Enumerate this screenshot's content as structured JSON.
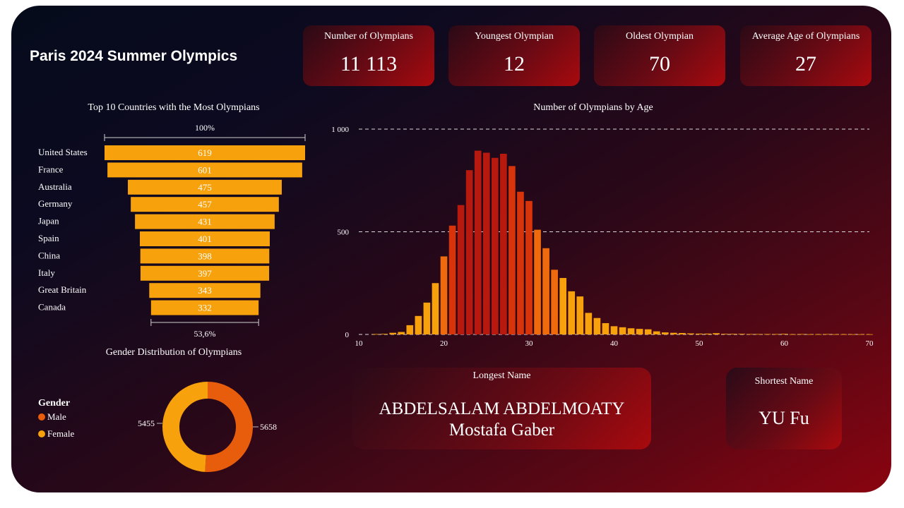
{
  "title": "Paris 2024 Summer Olympics",
  "kpis": [
    {
      "label": "Number of Olympians",
      "value": "11 113"
    },
    {
      "label": "Youngest Olympian",
      "value": "12"
    },
    {
      "label": "Oldest Olympian",
      "value": "70"
    },
    {
      "label": "Average Age of Olympians",
      "value": "27"
    }
  ],
  "colors": {
    "bar": "#f7a10c",
    "male": "#e85d0c",
    "female": "#f7a10c",
    "dark_red": "#b8190f",
    "red": "#d8340c",
    "orange": "#ee6a0d"
  },
  "chart_data": [
    {
      "type": "bar",
      "orientation": "horizontal-funnel",
      "title": "Top 10 Countries with the Most Olympians",
      "categories": [
        "United States",
        "France",
        "Australia",
        "Germany",
        "Japan",
        "Spain",
        "China",
        "Italy",
        "Great Britain",
        "Canada"
      ],
      "values": [
        619,
        601,
        475,
        457,
        431,
        401,
        398,
        397,
        343,
        332
      ],
      "top_percent_label": "100%",
      "bottom_percent_label": "53,6%"
    },
    {
      "type": "bar",
      "title": "Number of Olympians by Age",
      "x": [
        12,
        13,
        14,
        15,
        16,
        17,
        18,
        19,
        20,
        21,
        22,
        23,
        24,
        25,
        26,
        27,
        28,
        29,
        30,
        31,
        32,
        33,
        34,
        35,
        36,
        37,
        38,
        39,
        40,
        41,
        42,
        43,
        44,
        45,
        46,
        47,
        48,
        49,
        50,
        51,
        52,
        53,
        54,
        55,
        56,
        57,
        58,
        59,
        60,
        61,
        62,
        63,
        64,
        65,
        66,
        67,
        68,
        69,
        70
      ],
      "values": [
        2,
        3,
        8,
        12,
        45,
        90,
        155,
        250,
        380,
        530,
        630,
        800,
        895,
        885,
        860,
        880,
        820,
        695,
        650,
        510,
        420,
        315,
        275,
        210,
        185,
        105,
        80,
        55,
        40,
        35,
        30,
        27,
        25,
        15,
        10,
        8,
        7,
        5,
        4,
        4,
        6,
        3,
        3,
        3,
        2,
        2,
        2,
        2,
        3,
        1,
        2,
        1,
        1,
        2,
        1,
        1,
        1,
        1,
        1
      ],
      "xticks": [
        "10",
        "20",
        "30",
        "40",
        "50",
        "60",
        "70"
      ],
      "xlim": [
        10,
        70
      ],
      "yticks": [
        "0",
        "500",
        "1 000"
      ],
      "ylim": [
        0,
        1000
      ],
      "grid": "dashed horizontal"
    },
    {
      "type": "pie",
      "variant": "donut",
      "title": "Gender Distribution of Olympians",
      "legend_title": "Gender",
      "labels": [
        "Male",
        "Female"
      ],
      "values": [
        5658,
        5455
      ],
      "value_labels": [
        "5658",
        "5455"
      ],
      "legend_position": "left"
    }
  ],
  "longest_name": {
    "label": "Longest Name",
    "line1": "ABDELSALAM ABDELMOATY",
    "line2": "Mostafa Gaber"
  },
  "shortest_name": {
    "label": "Shortest Name",
    "value": "YU Fu"
  }
}
